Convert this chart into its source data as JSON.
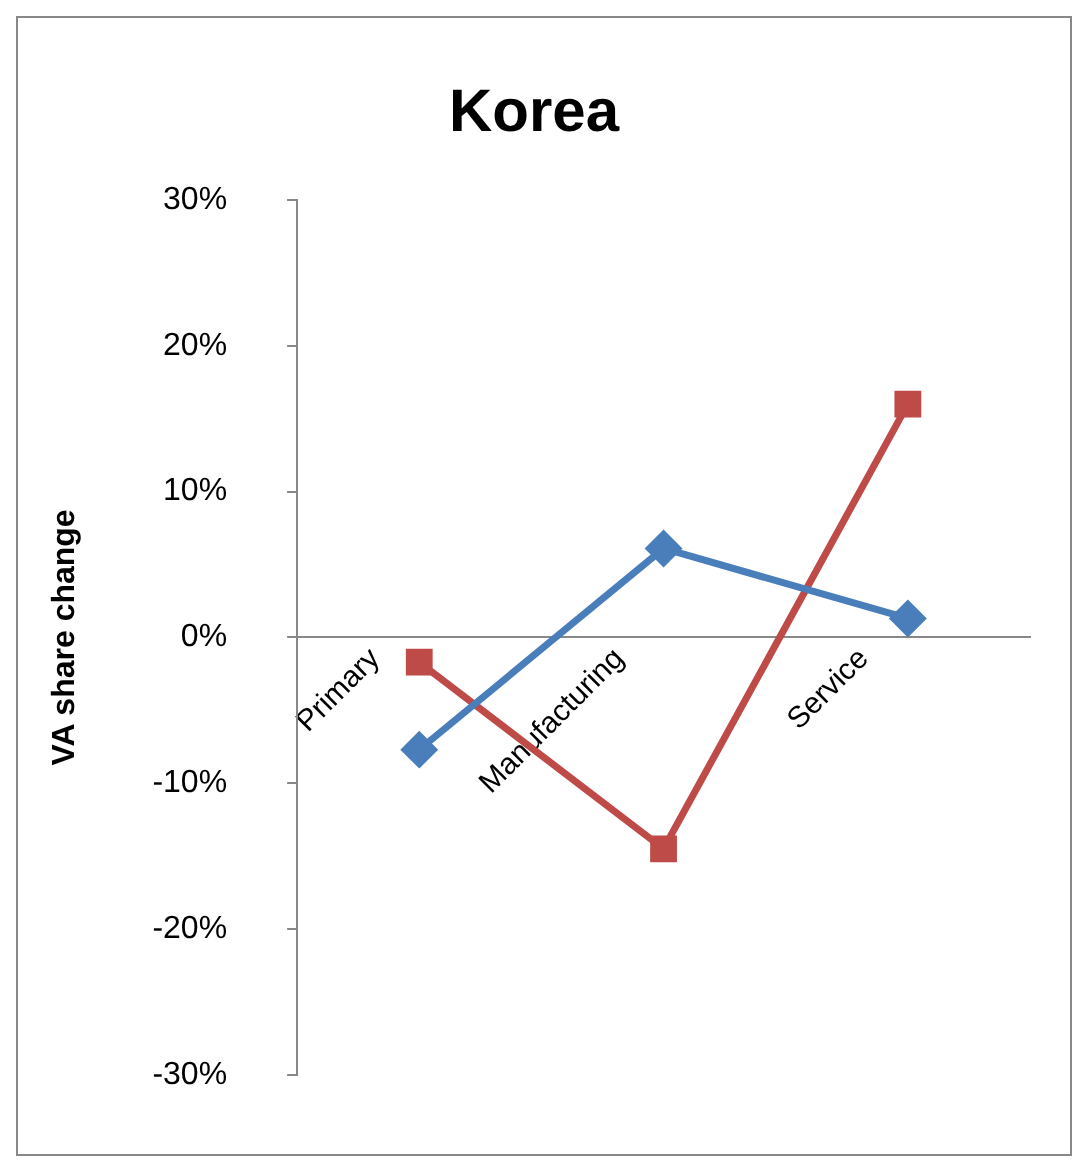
{
  "chart_data": {
    "type": "line",
    "title": "Korea",
    "ylabel": "VA share change",
    "categories": [
      "Primary",
      "Manufacturing",
      "Service"
    ],
    "series": [
      {
        "color": "#4a7ebb",
        "values": [
          -7.7,
          6.1,
          1.3
        ],
        "marker": "diamond"
      },
      {
        "color": "#be4b48",
        "values": [
          -1.7,
          -14.5,
          16
        ],
        "marker": "square"
      }
    ],
    "ylim": [
      -30,
      30
    ],
    "yticks": [
      {
        "value": -30,
        "label": "-30%"
      },
      {
        "value": -20,
        "label": "-20%"
      },
      {
        "value": -10,
        "label": "-10%"
      },
      {
        "value": 0,
        "label": "0%"
      },
      {
        "value": 10,
        "label": "10%"
      },
      {
        "value": 20,
        "label": "20%"
      },
      {
        "value": 30,
        "label": "30%"
      }
    ],
    "grid": false,
    "legend": false
  }
}
